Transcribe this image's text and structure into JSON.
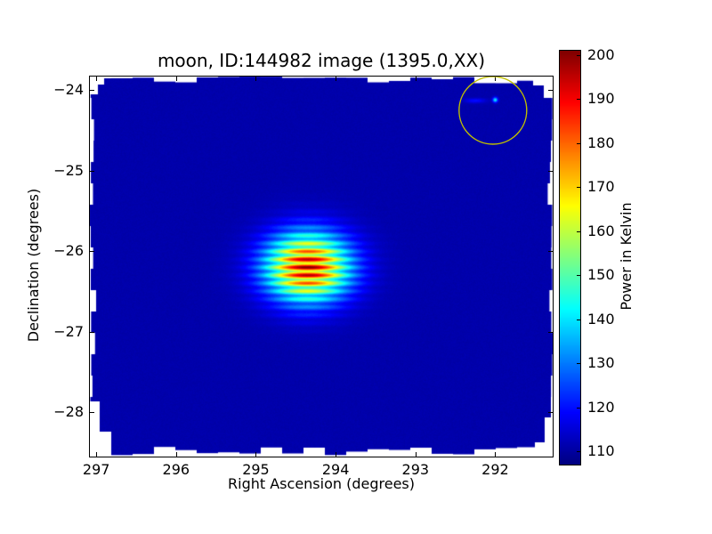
{
  "chart_data": {
    "type": "heatmap",
    "title": "moon, ID:144982 image (1395.0,XX)",
    "xlabel": "Right Ascension (degrees)",
    "ylabel": "Declination (degrees)",
    "xlim": [
      297.08,
      291.28
    ],
    "ylim": [
      -28.55,
      -23.83
    ],
    "x_axis_reversed": true,
    "grid": false,
    "x_ticks": [
      297,
      296,
      295,
      294,
      293,
      292
    ],
    "x_tick_labels": [
      "297",
      "296",
      "295",
      "294",
      "293",
      "292"
    ],
    "y_ticks": [
      -24,
      -25,
      -26,
      -27,
      -28
    ],
    "y_tick_labels": [
      "−24",
      "−25",
      "−26",
      "−27",
      "−28"
    ],
    "colormap": "jet",
    "colorbar": {
      "label": "Power in Kelvin",
      "vmin": 107,
      "vmax": 201,
      "ticks": [
        110,
        120,
        130,
        140,
        150,
        160,
        170,
        180,
        190,
        200
      ],
      "tick_labels": [
        "110",
        "120",
        "130",
        "140",
        "150",
        "160",
        "170",
        "180",
        "190",
        "200"
      ]
    },
    "image_model": {
      "background_k": 111,
      "moon": {
        "ra_deg": 294.35,
        "dec_deg": -26.2,
        "amplitude_k": 91,
        "sigma_ra_deg": 0.36,
        "sigma_dec_deg": 0.29
      },
      "fringes": {
        "period_deg": 0.1,
        "depth": 0.42
      },
      "point_source": {
        "ra_deg": 292.0,
        "dec_deg": -24.12,
        "amplitude_k": 30,
        "sigma_deg": 0.022
      },
      "streak": {
        "ra_deg": 292.25,
        "dec_deg": -24.13,
        "amplitude_k": 9,
        "sigma_ra_deg": 0.09,
        "sigma_dec_deg": 0.02
      }
    },
    "annotation_circle": {
      "ra_deg": 292.03,
      "dec_deg": -24.25,
      "radius_deg": 0.42,
      "color": "#bfbf00"
    },
    "irregular_white_border": true
  }
}
